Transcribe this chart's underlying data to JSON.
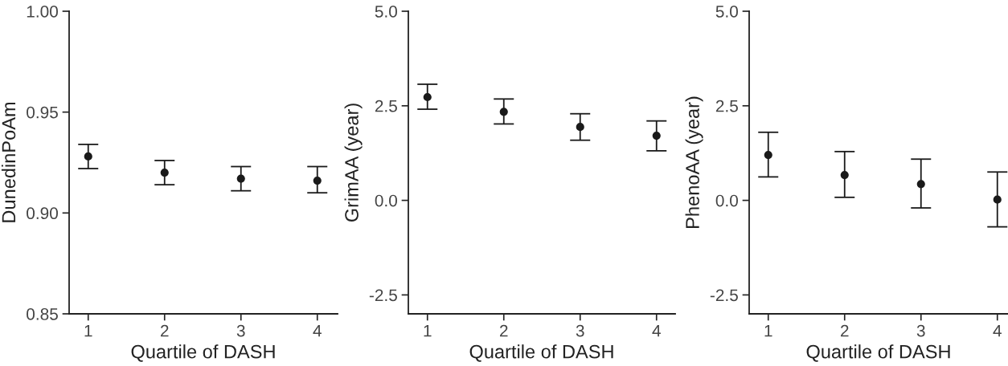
{
  "chart_data": [
    {
      "type": "scatter",
      "xlabel": "Quartile of DASH",
      "ylabel": "DunedinPoAm",
      "categories": [
        "1",
        "2",
        "3",
        "4"
      ],
      "series": [
        {
          "color": "#1a1a1a",
          "values": [
            0.928,
            0.92,
            0.917,
            0.916
          ],
          "errors": [
            [
              0.922,
              0.934
            ],
            [
              0.914,
              0.926
            ],
            [
              0.911,
              0.923
            ],
            [
              0.91,
              0.923
            ]
          ]
        }
      ],
      "ylim": [
        0.85,
        1.0
      ],
      "yticks": [
        {
          "value": 0.85,
          "label": "0.85"
        },
        {
          "value": 0.9,
          "label": "0.90"
        },
        {
          "value": 0.95,
          "label": "0.95"
        },
        {
          "value": 1.0,
          "label": "1.00"
        }
      ],
      "marker": "circle",
      "grid": false,
      "legend": false
    },
    {
      "type": "scatter",
      "xlabel": "Quartile of DASH",
      "ylabel": "GrimAA (year)",
      "categories": [
        "1",
        "2",
        "3",
        "4"
      ],
      "series": [
        {
          "color": "#1a1a1a",
          "values": [
            2.73,
            2.34,
            1.94,
            1.71
          ],
          "errors": [
            [
              2.41,
              3.07
            ],
            [
              2.02,
              2.68
            ],
            [
              1.59,
              2.29
            ],
            [
              1.31,
              2.1
            ]
          ]
        }
      ],
      "ylim": [
        -3.0,
        5.0
      ],
      "yticks": [
        {
          "value": -2.5,
          "label": "-2.5"
        },
        {
          "value": 0,
          "label": "0.0"
        },
        {
          "value": 2.5,
          "label": "2.5"
        },
        {
          "value": 5,
          "label": "5.0"
        }
      ],
      "marker": "circle",
      "grid": false,
      "legend": false
    },
    {
      "type": "scatter",
      "xlabel": "Quartile of DASH",
      "ylabel": "PhenoAA (year)",
      "categories": [
        "1",
        "2",
        "3",
        "4"
      ],
      "series": [
        {
          "color": "#1a1a1a",
          "values": [
            1.2,
            0.67,
            0.43,
            0.02
          ],
          "errors": [
            [
              0.62,
              1.8
            ],
            [
              0.08,
              1.29
            ],
            [
              -0.2,
              1.09
            ],
            [
              -0.7,
              0.75
            ]
          ]
        }
      ],
      "ylim": [
        -3.0,
        5.0
      ],
      "yticks": [
        {
          "value": -2.5,
          "label": "-2.5"
        },
        {
          "value": 0,
          "label": "0.0"
        },
        {
          "value": 2.5,
          "label": "2.5"
        },
        {
          "value": 5,
          "label": "5.0"
        }
      ],
      "marker": "circle",
      "grid": false,
      "legend": false
    }
  ]
}
